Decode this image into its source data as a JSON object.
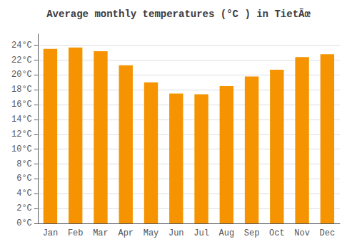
{
  "chart_data": {
    "type": "bar",
    "title": "Average monthly temperatures (°C ) in TietÃœ",
    "categories": [
      "Jan",
      "Feb",
      "Mar",
      "Apr",
      "May",
      "Jun",
      "Jul",
      "Aug",
      "Sep",
      "Oct",
      "Nov",
      "Dec"
    ],
    "values": [
      23.5,
      23.7,
      23.2,
      21.3,
      19.0,
      17.5,
      17.4,
      18.5,
      19.8,
      20.7,
      22.4,
      22.8
    ],
    "color": "#F59400",
    "ylim": [
      0,
      25.5
    ],
    "yticks": [
      {
        "value": 0,
        "label": "0°C"
      },
      {
        "value": 2,
        "label": "2°C"
      },
      {
        "value": 4,
        "label": "4°C"
      },
      {
        "value": 6,
        "label": "6°C"
      },
      {
        "value": 8,
        "label": "8°C"
      },
      {
        "value": 10,
        "label": "10°C"
      },
      {
        "value": 12,
        "label": "12°C"
      },
      {
        "value": 14,
        "label": "14°C"
      },
      {
        "value": 16,
        "label": "16°C"
      },
      {
        "value": 18,
        "label": "18°C"
      },
      {
        "value": 20,
        "label": "20°C"
      },
      {
        "value": 22,
        "label": "22°C"
      },
      {
        "value": 24,
        "label": "24°C"
      }
    ],
    "grid": true
  }
}
